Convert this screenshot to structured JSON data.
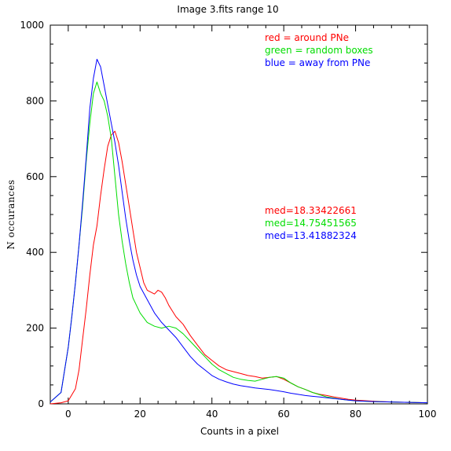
{
  "chart_data": {
    "type": "line",
    "title": "Image 3.fits   range 10",
    "xlabel": "Counts in a pixel",
    "ylabel": "N occurances",
    "xlim": [
      -5,
      100
    ],
    "ylim": [
      0,
      1000
    ],
    "x_ticks": [
      0,
      20,
      40,
      60,
      80,
      100
    ],
    "y_ticks": [
      0,
      200,
      400,
      600,
      800,
      1000
    ],
    "grid": false,
    "legend": [
      {
        "text": "red = around PNe",
        "color": "#ff0000"
      },
      {
        "text": "green = random boxes",
        "color": "#00dd00"
      },
      {
        "text": "blue = away from PNe",
        "color": "#0000ff"
      }
    ],
    "medians": [
      {
        "text": "med=18.33422661",
        "color": "#ff0000"
      },
      {
        "text": "med=14.75451565",
        "color": "#00dd00"
      },
      {
        "text": "med=13.41882324",
        "color": "#0000ff"
      }
    ],
    "series": [
      {
        "color": "#ff0000",
        "x": [
          -5,
          -2,
          0,
          2,
          3,
          4,
          5,
          6,
          7,
          8,
          9,
          10,
          11,
          12,
          13,
          14,
          15,
          16,
          17,
          18,
          19,
          20,
          21,
          22,
          23,
          24,
          25,
          26,
          27,
          28,
          29,
          30,
          32,
          34,
          36,
          38,
          40,
          42,
          44,
          46,
          48,
          50,
          52,
          54,
          56,
          58,
          60,
          62,
          64,
          66,
          68,
          70,
          72,
          74,
          76,
          78,
          80,
          85,
          90,
          95,
          100
        ],
        "y": [
          0,
          3,
          8,
          40,
          90,
          170,
          250,
          340,
          420,
          470,
          550,
          620,
          680,
          710,
          720,
          690,
          640,
          580,
          520,
          460,
          400,
          360,
          320,
          300,
          295,
          290,
          300,
          295,
          280,
          260,
          245,
          230,
          210,
          180,
          155,
          130,
          115,
          100,
          90,
          85,
          80,
          75,
          72,
          68,
          70,
          72,
          65,
          55,
          45,
          38,
          30,
          25,
          22,
          18,
          15,
          12,
          10,
          7,
          5,
          4,
          3
        ]
      },
      {
        "color": "#00dd00",
        "x": [
          -5,
          -2,
          0,
          1,
          2,
          3,
          4,
          5,
          6,
          7,
          8,
          9,
          10,
          11,
          12,
          13,
          14,
          15,
          16,
          17,
          18,
          19,
          20,
          22,
          24,
          26,
          28,
          30,
          32,
          34,
          36,
          38,
          40,
          42,
          44,
          46,
          48,
          50,
          52,
          54,
          56,
          58,
          60,
          62,
          64,
          66,
          68,
          70,
          72,
          74,
          76,
          78,
          80,
          85,
          90,
          95,
          100
        ],
        "y": [
          5,
          30,
          150,
          230,
          320,
          420,
          520,
          640,
          740,
          820,
          850,
          820,
          800,
          760,
          700,
          600,
          500,
          430,
          370,
          320,
          280,
          260,
          240,
          215,
          205,
          200,
          205,
          200,
          185,
          165,
          145,
          125,
          105,
          90,
          80,
          70,
          65,
          62,
          60,
          65,
          70,
          72,
          68,
          55,
          45,
          38,
          30,
          24,
          18,
          15,
          12,
          10,
          8,
          6,
          5,
          4,
          3
        ]
      },
      {
        "color": "#0000ff",
        "x": [
          -5,
          -2,
          0,
          1,
          2,
          3,
          4,
          5,
          6,
          7,
          8,
          9,
          10,
          11,
          12,
          13,
          14,
          15,
          16,
          17,
          18,
          19,
          20,
          22,
          24,
          26,
          28,
          30,
          32,
          34,
          36,
          38,
          40,
          42,
          44,
          46,
          48,
          50,
          52,
          54,
          56,
          58,
          60,
          62,
          64,
          66,
          68,
          70,
          72,
          74,
          76,
          78,
          80,
          85,
          90,
          95,
          100
        ],
        "y": [
          5,
          30,
          150,
          230,
          320,
          420,
          530,
          650,
          780,
          860,
          910,
          890,
          840,
          790,
          740,
          690,
          630,
          560,
          490,
          430,
          380,
          340,
          310,
          275,
          240,
          215,
          195,
          175,
          150,
          125,
          105,
          90,
          75,
          65,
          58,
          52,
          48,
          45,
          42,
          40,
          38,
          35,
          32,
          28,
          25,
          22,
          20,
          18,
          16,
          14,
          12,
          10,
          8,
          6,
          5,
          4,
          3
        ]
      }
    ]
  }
}
